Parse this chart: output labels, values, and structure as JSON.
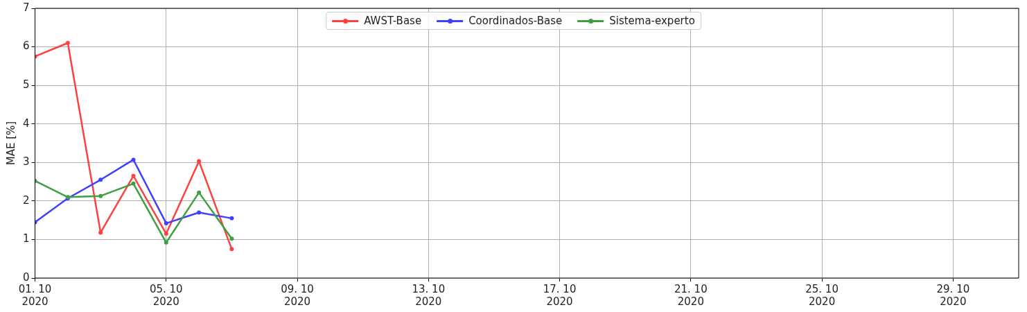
{
  "chart_data": {
    "type": "line",
    "ylabel": "MAE [%]",
    "x": [
      "2020-10-01",
      "2020-10-02",
      "2020-10-03",
      "2020-10-04",
      "2020-10-05",
      "2020-10-06",
      "2020-10-07"
    ],
    "series": [
      {
        "name": "AWST-Base",
        "color": "#ff4040",
        "values": [
          5.75,
          6.1,
          1.18,
          2.65,
          1.15,
          3.03,
          0.75
        ]
      },
      {
        "name": "Coordinados-Base",
        "color": "#4040ff",
        "values": [
          1.45,
          2.07,
          2.55,
          3.07,
          1.42,
          1.7,
          1.55
        ]
      },
      {
        "name": "Sistema-experto",
        "color": "#409f40",
        "values": [
          2.52,
          2.1,
          2.13,
          2.45,
          0.92,
          2.22,
          1.02
        ]
      }
    ],
    "xlim": [
      "2020-10-01",
      "2020-10-31"
    ],
    "xticks": [
      {
        "value": "2020-10-01",
        "label": "01. 10\n2020"
      },
      {
        "value": "2020-10-05",
        "label": "05. 10\n2020"
      },
      {
        "value": "2020-10-09",
        "label": "09. 10\n2020"
      },
      {
        "value": "2020-10-13",
        "label": "13. 10\n2020"
      },
      {
        "value": "2020-10-17",
        "label": "17. 10\n2020"
      },
      {
        "value": "2020-10-21",
        "label": "21. 10\n2020"
      },
      {
        "value": "2020-10-25",
        "label": "25. 10\n2020"
      },
      {
        "value": "2020-10-29",
        "label": "29. 10\n2020"
      }
    ],
    "ylim": [
      0,
      7
    ],
    "yticks": [
      0,
      1,
      2,
      3,
      4,
      5,
      6,
      7
    ],
    "grid": true,
    "legend": "top",
    "marker": "circle",
    "line_style": "solid"
  }
}
